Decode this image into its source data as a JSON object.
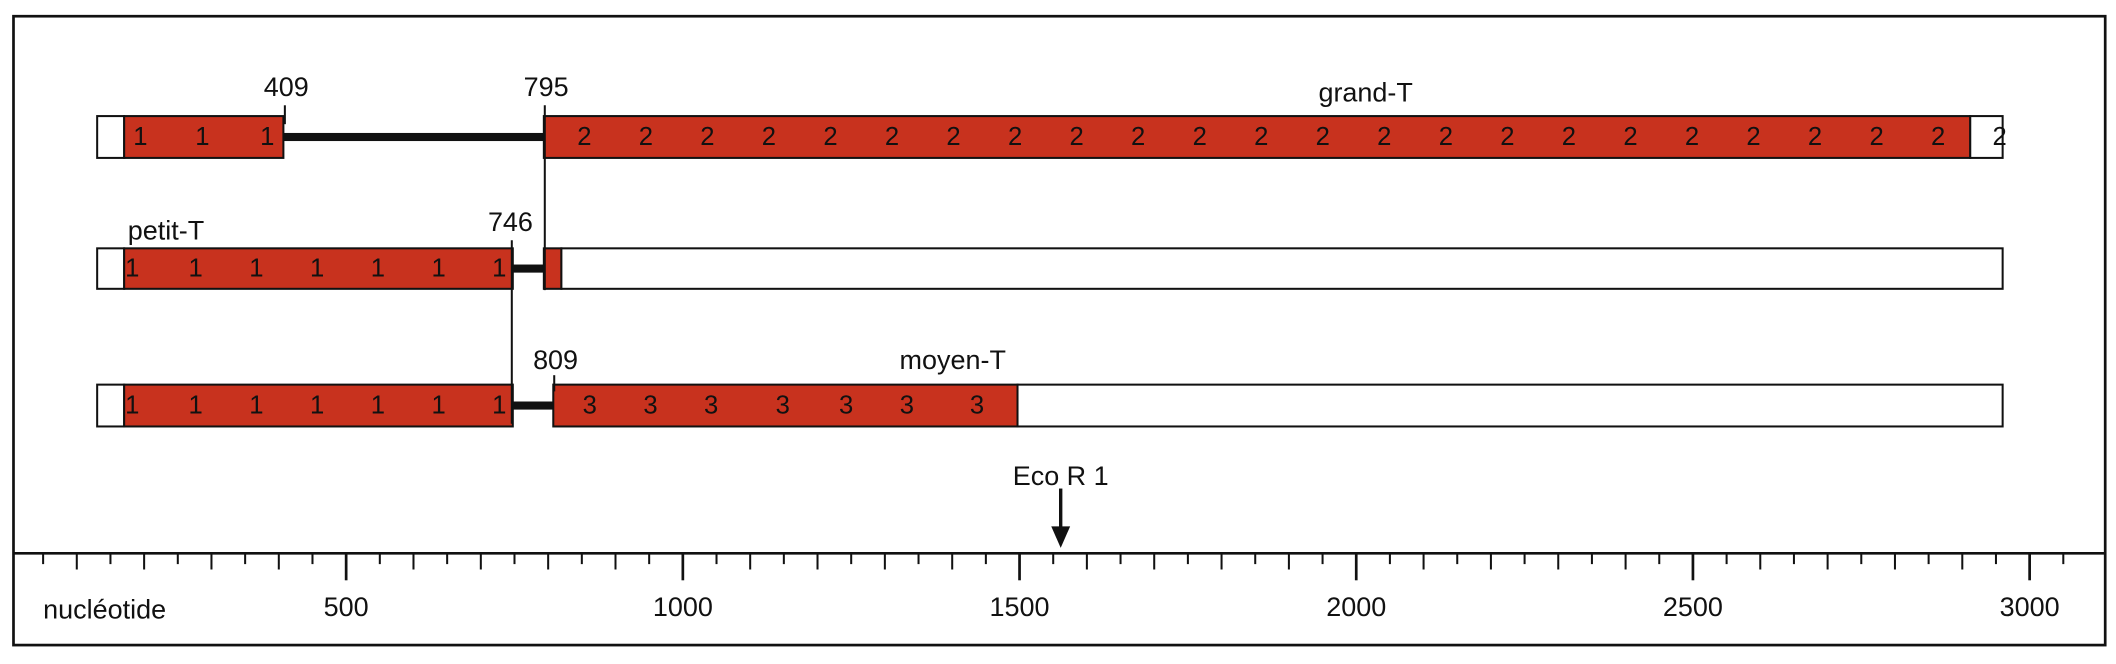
{
  "rows": [
    {
      "name": "grand-T",
      "segments": [
        {
          "labels": [
            "1",
            "1",
            "1"
          ]
        },
        {
          "labels": [
            "2",
            "2",
            "2",
            "2",
            "2",
            "2",
            "2",
            "2",
            "2",
            "2",
            "2",
            "2",
            "2",
            "2",
            "2",
            "2",
            "2",
            "2",
            "2",
            "2",
            "2",
            "2",
            "2",
            "2"
          ]
        }
      ]
    },
    {
      "name": "petit-T",
      "segments": [
        {
          "labels": [
            "1",
            "1",
            "1",
            "1",
            "1",
            "1",
            "1"
          ]
        }
      ]
    },
    {
      "name": "moyen-T",
      "segments": [
        {
          "labels": [
            "1",
            "1",
            "1",
            "1",
            "1",
            "1",
            "1"
          ]
        },
        {
          "labels": [
            "3",
            "3",
            "3",
            "3",
            "3",
            "3",
            "3"
          ]
        }
      ]
    }
  ],
  "markers": [
    409,
    795,
    746,
    809
  ],
  "site": "Eco R 1",
  "axis": {
    "label": "nucléotide",
    "ticks": [
      500,
      1000,
      1500,
      2000,
      2500,
      3000
    ]
  }
}
